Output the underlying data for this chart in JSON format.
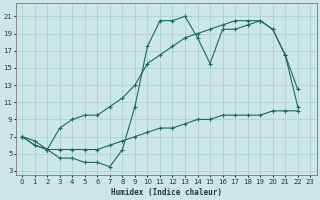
{
  "xlabel": "Humidex (Indice chaleur)",
  "xlim": [
    -0.5,
    23.5
  ],
  "ylim": [
    2.5,
    22.5
  ],
  "xticks": [
    0,
    1,
    2,
    3,
    4,
    5,
    6,
    7,
    8,
    9,
    10,
    11,
    12,
    13,
    14,
    15,
    16,
    17,
    18,
    19,
    20,
    21,
    22,
    23
  ],
  "yticks": [
    3,
    5,
    7,
    9,
    11,
    13,
    15,
    17,
    19,
    21
  ],
  "bg_color": "#cce8e6",
  "grid_color": "#aacfcc",
  "line_color": "#1a6b5a",
  "line1_x": [
    0,
    1,
    2,
    3,
    4,
    5,
    6,
    7,
    8,
    9,
    10,
    11,
    12,
    13,
    14,
    15,
    16,
    17,
    18,
    19,
    20,
    21,
    22
  ],
  "line1_y": [
    7,
    6.5,
    5.5,
    8.0,
    9.0,
    9.5,
    9.5,
    10.5,
    11.5,
    13.0,
    15.5,
    16.5,
    17.5,
    18.5,
    19.0,
    19.5,
    20.0,
    20.5,
    20.5,
    20.5,
    19.5,
    16.5,
    10.5
  ],
  "line2_x": [
    0,
    1,
    2,
    3,
    4,
    5,
    6,
    7,
    8,
    9,
    10,
    11,
    12,
    13,
    14,
    15,
    16,
    17,
    18,
    19,
    20,
    21,
    22
  ],
  "line2_y": [
    7,
    6.0,
    5.5,
    4.5,
    4.5,
    4.0,
    4.0,
    3.5,
    5.5,
    10.5,
    17.5,
    20.5,
    20.5,
    21.0,
    18.5,
    15.5,
    19.5,
    19.5,
    20.0,
    20.5,
    19.5,
    16.5,
    12.5
  ],
  "line3_x": [
    0,
    1,
    2,
    3,
    4,
    5,
    6,
    7,
    8,
    9,
    10,
    11,
    12,
    13,
    14,
    15,
    16,
    17,
    18,
    19,
    20,
    21,
    22
  ],
  "line3_y": [
    7,
    6.0,
    5.5,
    5.5,
    5.5,
    5.5,
    5.5,
    6.0,
    6.5,
    7.0,
    7.5,
    8.0,
    8.0,
    8.5,
    9.0,
    9.0,
    9.5,
    9.5,
    9.5,
    9.5,
    10.0,
    10.0,
    10.0
  ]
}
